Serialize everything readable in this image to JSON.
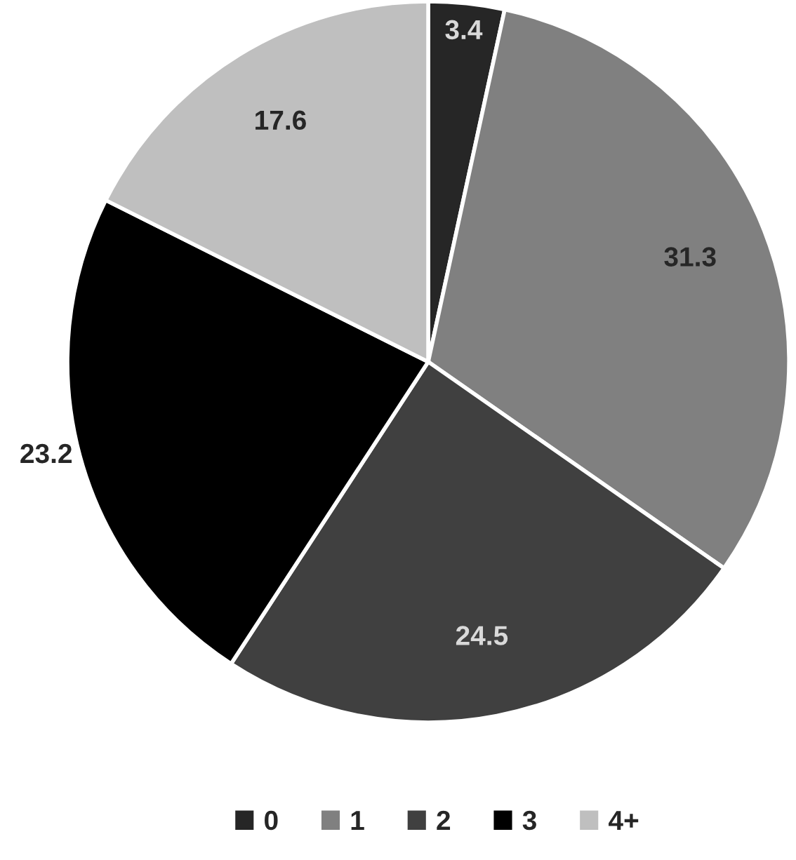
{
  "chart_data": {
    "type": "pie",
    "categories": [
      "0",
      "1",
      "2",
      "3",
      "4+"
    ],
    "values": [
      3.4,
      31.3,
      24.5,
      23.2,
      17.6
    ],
    "colors": [
      "#262626",
      "#808080",
      "#404040",
      "#000000",
      "#bfbfbf"
    ],
    "data_labels": true,
    "legend": "bottom"
  }
}
